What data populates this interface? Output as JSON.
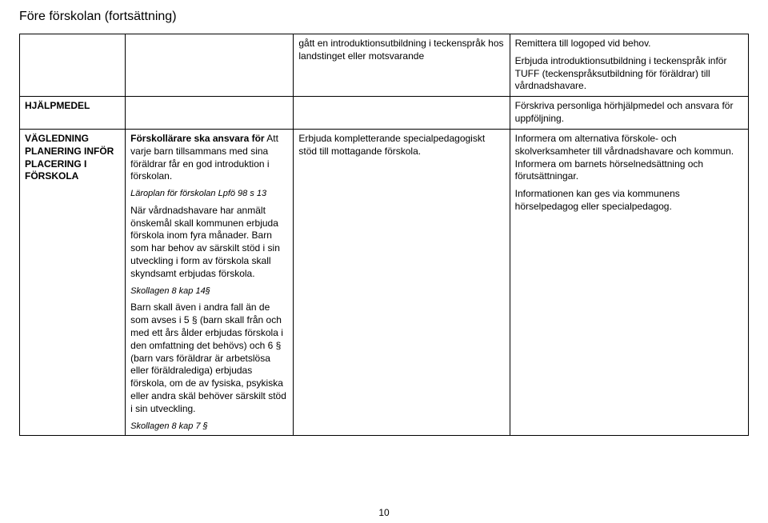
{
  "page": {
    "title": "Före förskolan (fortsättning)",
    "number": "10"
  },
  "rows": {
    "r1": {
      "c3": "gått en introduktionsutbildning i teckenspråk hos landstinget eller motsvarande",
      "c4a": "Remittera till logoped vid behov.",
      "c4b": "Erbjuda introduktionsutbildning i teckenspråk inför TUFF (teckenspråksutbildning för föräldrar) till vårdnadshavare."
    },
    "r2": {
      "c1": "HJÄLPMEDEL",
      "c4": "Förskriva personliga hörhjälpmedel och ansvara för uppföljning."
    },
    "r3": {
      "c1a": "VÄGLEDNING",
      "c1b": "PLANERING INFÖR",
      "c1c": "PLACERING I",
      "c1d": "FÖRSKOLA",
      "c2_lead": "Förskollärare ska ansvara för",
      "c2_p1": " Att varje barn tillsammans med sina föräldrar får en god introduktion i förskolan.",
      "c2_cite1": "Läroplan för förskolan Lpfö 98 s 13",
      "c2_p2": "När vårdnadshavare har anmält önskemål skall kommunen erbjuda förskola inom fyra månader. Barn som har behov av särskilt stöd i sin utveckling i form av förskola skall skyndsamt erbjudas förskola.",
      "c2_cite2": "Skollagen 8 kap 14§",
      "c2_p3": "Barn skall även i andra fall än de som avses i 5 § (barn skall från och med ett års ålder erbjudas förskola i den omfattning det behövs) och 6 § (barn vars föräldrar är arbetslösa eller föräldralediga) erbjudas förskola, om de av fysiska, psykiska eller andra skäl behöver särskilt stöd i sin utveckling.",
      "c2_cite3": "Skollagen 8 kap 7 §",
      "c3": "Erbjuda kompletterande specialpedagogiskt stöd till mottagande förskola.",
      "c4a": "Informera om alternativa förskole- och skolverksamheter till vårdnadshavare och kommun. Informera om barnets hörselnedsättning och förutsättningar.",
      "c4b": "Informationen kan ges via kommunens hörselpedagog eller specialpedagog."
    }
  }
}
